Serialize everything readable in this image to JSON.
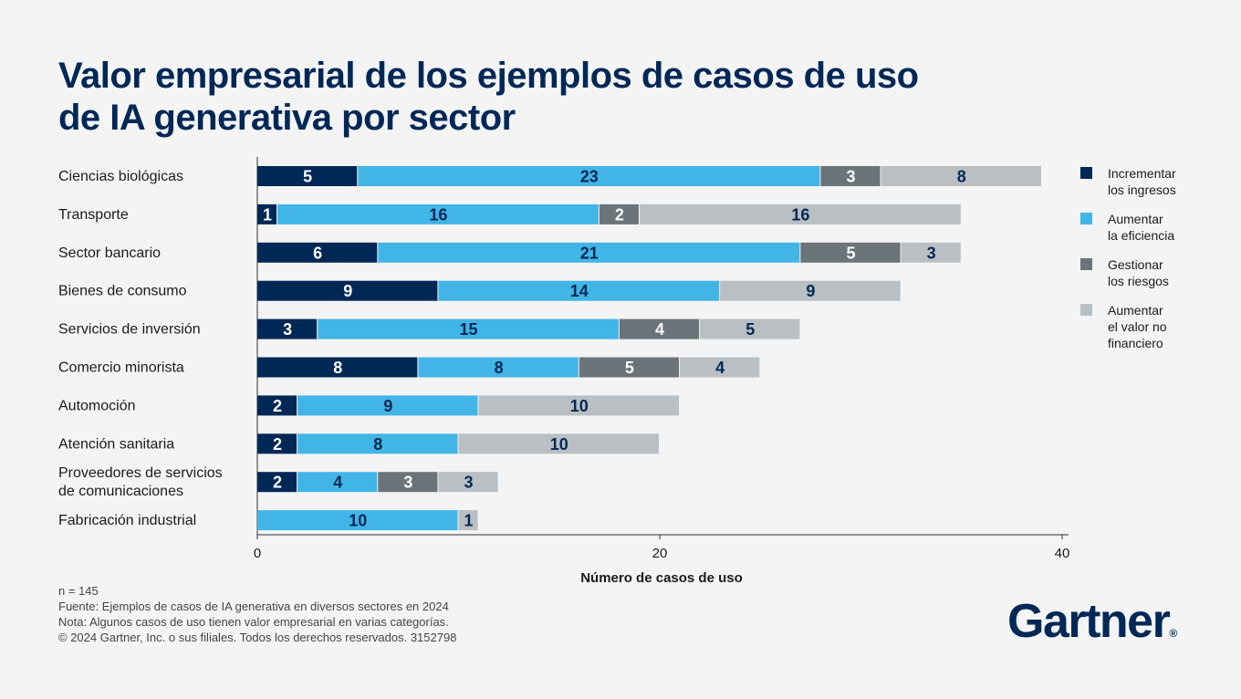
{
  "title_lines": [
    "Valor empresarial de los ejemplos de casos de uso",
    "de IA generativa por sector"
  ],
  "colors": {
    "incrementar": "#002856",
    "eficiencia": "#41b6e6",
    "riesgos": "#6b7479",
    "no_financiero": "#b9bfc2"
  },
  "chart_data": {
    "type": "bar",
    "orientation": "horizontal",
    "stacked": true,
    "categories": [
      "Ciencias biológicas",
      "Transporte",
      "Sector bancario",
      "Bienes de consumo",
      "Servicios de inversión",
      "Comercio minorista",
      "Automoción",
      "Atención sanitaria",
      "Proveedores de servicios de comunicaciones",
      "Fabricación industrial"
    ],
    "category_lines": [
      [
        "Ciencias biológicas"
      ],
      [
        "Transporte"
      ],
      [
        "Sector bancario"
      ],
      [
        "Bienes de consumo"
      ],
      [
        "Servicios de inversión"
      ],
      [
        "Comercio minorista"
      ],
      [
        "Automoción"
      ],
      [
        "Atención sanitaria"
      ],
      [
        "Proveedores de servicios",
        "de comunicaciones"
      ],
      [
        "Fabricación industrial"
      ]
    ],
    "series": [
      {
        "name": "Incrementar los ingresos",
        "key": "incrementar",
        "values": [
          5,
          1,
          6,
          9,
          3,
          8,
          2,
          2,
          2,
          0
        ]
      },
      {
        "name": "Aumentar la eficiencia",
        "key": "eficiencia",
        "values": [
          23,
          16,
          21,
          14,
          15,
          8,
          9,
          8,
          4,
          10
        ]
      },
      {
        "name": "Gestionar los riesgos",
        "key": "riesgos",
        "values": [
          3,
          2,
          5,
          0,
          4,
          5,
          0,
          0,
          3,
          0
        ]
      },
      {
        "name": "Aumentar el valor no financiero",
        "key": "no_financiero",
        "values": [
          8,
          16,
          3,
          9,
          5,
          4,
          10,
          10,
          3,
          1
        ]
      }
    ],
    "xlim": [
      0,
      40
    ],
    "xticks": [
      0,
      20,
      40
    ],
    "xlabel": "Número de casos de uso",
    "ylabel": "",
    "grid": false,
    "legend_position": "right"
  },
  "legend": [
    {
      "key": "incrementar",
      "lines": [
        "Incrementar",
        "los ingresos"
      ]
    },
    {
      "key": "eficiencia",
      "lines": [
        "Aumentar",
        "la eficiencia"
      ]
    },
    {
      "key": "riesgos",
      "lines": [
        "Gestionar",
        "los riesgos"
      ]
    },
    {
      "key": "no_financiero",
      "lines": [
        "Aumentar",
        "el valor no",
        "financiero"
      ]
    }
  ],
  "notes": {
    "n": "n = 145",
    "source": "Fuente: Ejemplos de casos de IA generativa en diversos sectores en 2024",
    "note": "Nota: Algunos casos de uso tienen valor empresarial en varias categorías.",
    "copyright": "© 2024 Gartner, Inc. o sus filiales. Todos los derechos reservados. 3152798"
  },
  "logo": {
    "text": "Gartner",
    "mark": "®"
  }
}
